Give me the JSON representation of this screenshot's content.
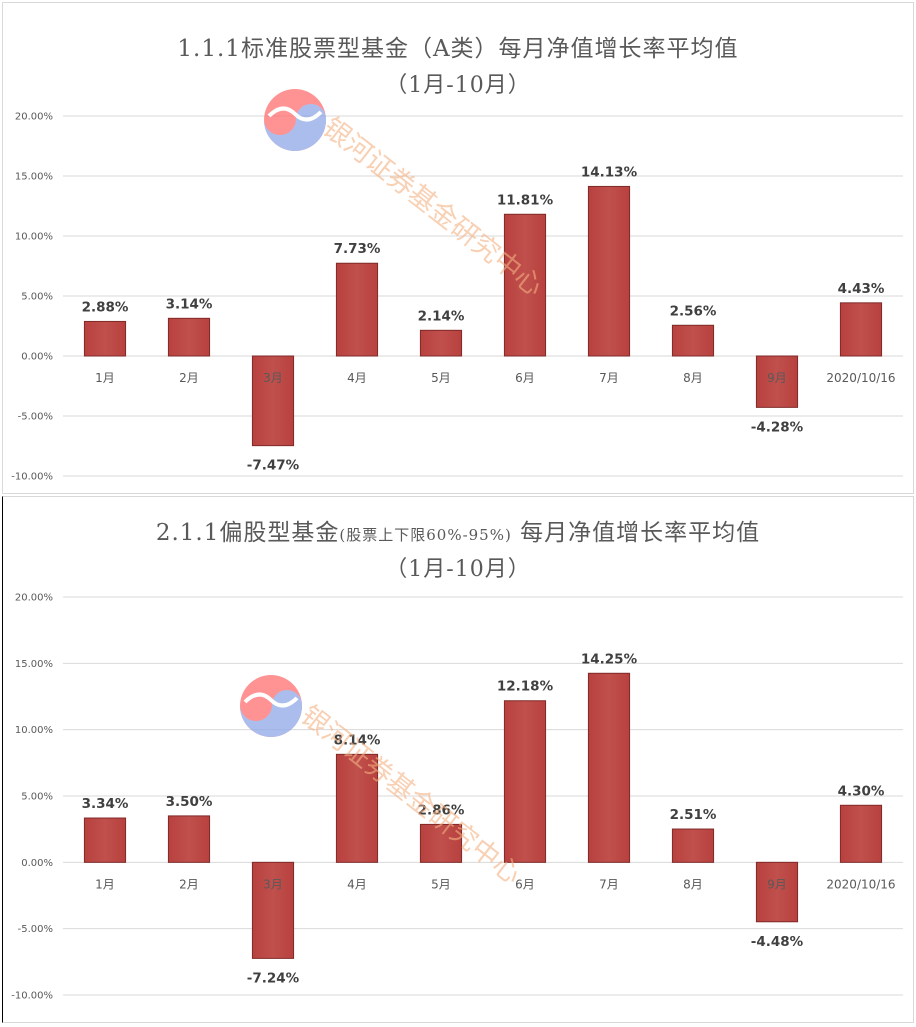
{
  "chart_data": [
    {
      "type": "bar",
      "title": "1.1.1标准股票型基金（A类）每月净值增长率平均值",
      "subtitle": "（1月-10月）",
      "categories": [
        "1月",
        "2月",
        "3月",
        "4月",
        "5月",
        "6月",
        "7月",
        "8月",
        "9月",
        "2020/10/16"
      ],
      "values": [
        2.88,
        3.14,
        -7.47,
        7.73,
        2.14,
        11.81,
        14.13,
        2.56,
        -4.28,
        4.43
      ],
      "data_labels": [
        "2.88%",
        "3.14%",
        "-7.47%",
        "7.73%",
        "2.14%",
        "11.81%",
        "14.13%",
        "2.56%",
        "-4.28%",
        "4.43%"
      ],
      "yticks": [
        "20.00%",
        "15.00%",
        "10.00%",
        "5.00%",
        "0.00%",
        "-5.00%",
        "-10.00%"
      ],
      "ylim": [
        -10,
        20
      ],
      "xlabel": "",
      "ylabel": "",
      "grid": true,
      "bar_color": "#c0504d"
    },
    {
      "type": "bar",
      "title_main": "2.1.1偏股型基金",
      "title_note": "(股票上下限60%-95%)",
      "title_tail": "每月净值增长率平均值",
      "subtitle": "（1月-10月）",
      "categories": [
        "1月",
        "2月",
        "3月",
        "4月",
        "5月",
        "6月",
        "7月",
        "8月",
        "9月",
        "2020/10/16"
      ],
      "values": [
        3.34,
        3.5,
        -7.24,
        8.14,
        2.86,
        12.18,
        14.25,
        2.51,
        -4.48,
        4.3
      ],
      "data_labels": [
        "3.34%",
        "3.50%",
        "-7.24%",
        "8.14%",
        "2.86%",
        "12.18%",
        "14.25%",
        "2.51%",
        "-4.48%",
        "4.30%"
      ],
      "yticks": [
        "20.00%",
        "15.00%",
        "10.00%",
        "5.00%",
        "0.00%",
        "-5.00%",
        "-10.00%"
      ],
      "ylim": [
        -10,
        20
      ],
      "xlabel": "",
      "ylabel": "",
      "grid": true,
      "bar_color": "#c0504d"
    }
  ],
  "watermark": {
    "text": "银河证券基金研究中心",
    "logo": "galaxy-securities-logo",
    "logo_colors": [
      "#ff6f6f",
      "#8fa8e8"
    ],
    "text_color": "#f4b183"
  }
}
